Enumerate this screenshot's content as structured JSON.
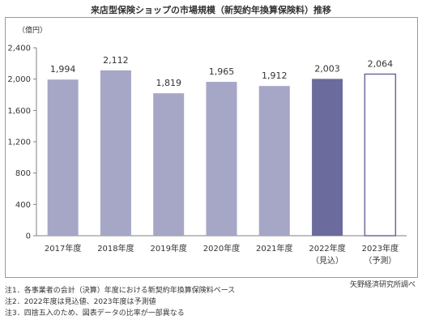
{
  "title": "来店型保険ショップの市場規模（新契約年換算保険料）推移",
  "unit": "（億円）",
  "source": "矢野経済研究所調べ",
  "notes": [
    "注1．各事業者の会計（決算）年度における新契約年換算保険料ベース",
    "注2．2022年度は見込値、2023年度は予測値",
    "注3．四捨五入のため、図表データの比率が一部異なる"
  ],
  "colors": {
    "actual": "#a6a6c7",
    "estimate": "#6b6b9e",
    "forecast_fill": "#ffffff",
    "forecast_stroke": "#6b6b9e",
    "axis": "#808080"
  },
  "chart_data": {
    "type": "bar",
    "categories": [
      "2017年度",
      "2018年度",
      "2019年度",
      "2020年度",
      "2021年度",
      "2022年度",
      "2023年度"
    ],
    "category_sublabels": [
      "",
      "",
      "",
      "",
      "",
      "（見込）",
      "（予測）"
    ],
    "values": [
      1994,
      2112,
      1819,
      1965,
      1912,
      2003,
      2064
    ],
    "value_labels": [
      "1,994",
      "2,112",
      "1,819",
      "1,965",
      "1,912",
      "2,003",
      "2,064"
    ],
    "bar_styles": [
      "actual",
      "actual",
      "actual",
      "actual",
      "actual",
      "estimate",
      "forecast"
    ],
    "yticks": [
      0,
      400,
      800,
      1200,
      1600,
      2000,
      2400
    ],
    "ytick_labels": [
      "0",
      "400",
      "800",
      "1,200",
      "1,600",
      "2,000",
      "2,400"
    ],
    "ylim": [
      0,
      2400
    ],
    "grid": false,
    "legend": "none"
  }
}
